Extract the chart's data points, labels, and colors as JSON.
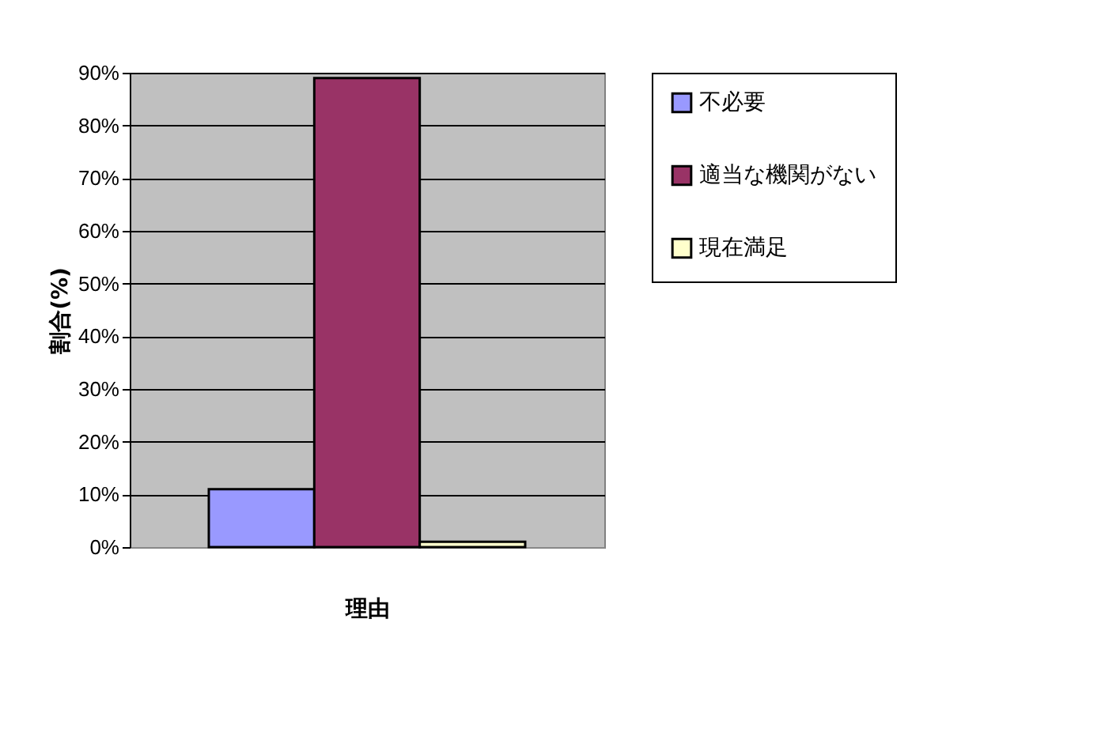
{
  "chart_data": {
    "type": "bar",
    "xlabel": "理由",
    "ylabel": "割合(%)",
    "categories": [
      null
    ],
    "series": [
      {
        "name": "不必要",
        "color": "#9999ff",
        "values": [
          11
        ]
      },
      {
        "name": "適当な機関がない",
        "color": "#993366",
        "values": [
          89
        ]
      },
      {
        "name": "現在満足",
        "color": "#ffffcc",
        "values": [
          1
        ]
      }
    ],
    "ylim": [
      0,
      90
    ],
    "yticks": [
      {
        "value": 0,
        "label": "0%"
      },
      {
        "value": 10,
        "label": "10%"
      },
      {
        "value": 20,
        "label": "20%"
      },
      {
        "value": 30,
        "label": "30%"
      },
      {
        "value": 40,
        "label": "40%"
      },
      {
        "value": 50,
        "label": "50%"
      },
      {
        "value": 60,
        "label": "60%"
      },
      {
        "value": 70,
        "label": "70%"
      },
      {
        "value": 80,
        "label": "80%"
      },
      {
        "value": 90,
        "label": "90%"
      }
    ],
    "grid": "y",
    "legend": "right"
  }
}
